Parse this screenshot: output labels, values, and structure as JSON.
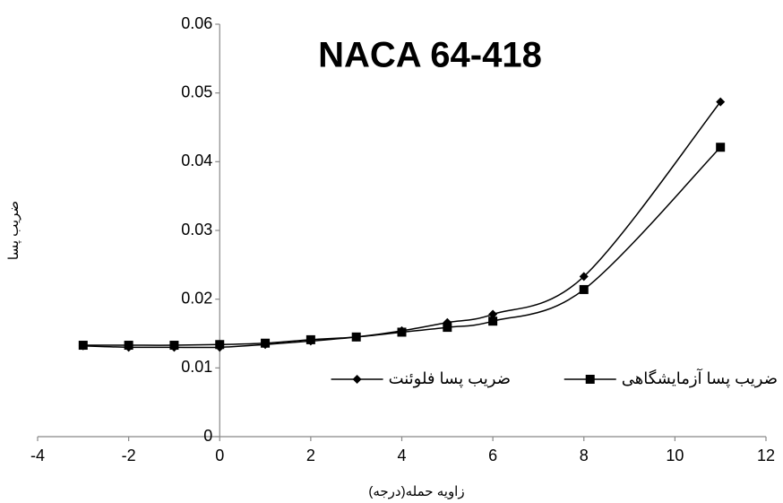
{
  "chart_data": {
    "type": "line",
    "title": "NACA 64-418",
    "x_label": "زاویه حمله(درجه)",
    "y_label": "ضریب پسا",
    "x": [
      -3,
      -2,
      -1,
      0,
      1,
      2,
      3,
      4,
      5,
      6,
      8,
      11
    ],
    "series": [
      {
        "name": "ضریب پسا فلوئنت",
        "color": "#000000",
        "marker": "diamond",
        "values": [
          0.0132,
          0.013,
          0.013,
          0.013,
          0.0134,
          0.0139,
          0.0145,
          0.0154,
          0.0166,
          0.0178,
          0.0233,
          0.0487
        ]
      },
      {
        "name": "ضریب پسا آزمایشگاهی",
        "color": "#000000",
        "marker": "square",
        "values": [
          0.0133,
          0.0133,
          0.0133,
          0.0134,
          0.0136,
          0.0141,
          0.0145,
          0.0152,
          0.0159,
          0.0168,
          0.0214,
          0.0421
        ]
      }
    ],
    "xlim": [
      -4,
      12
    ],
    "xticks": [
      -4,
      -2,
      0,
      2,
      4,
      6,
      8,
      10,
      12
    ],
    "ylim": [
      0,
      0.06
    ],
    "yticks": [
      0,
      0.01,
      0.02,
      0.03,
      0.04,
      0.05,
      0.06
    ],
    "smooth": true,
    "grid": false
  }
}
